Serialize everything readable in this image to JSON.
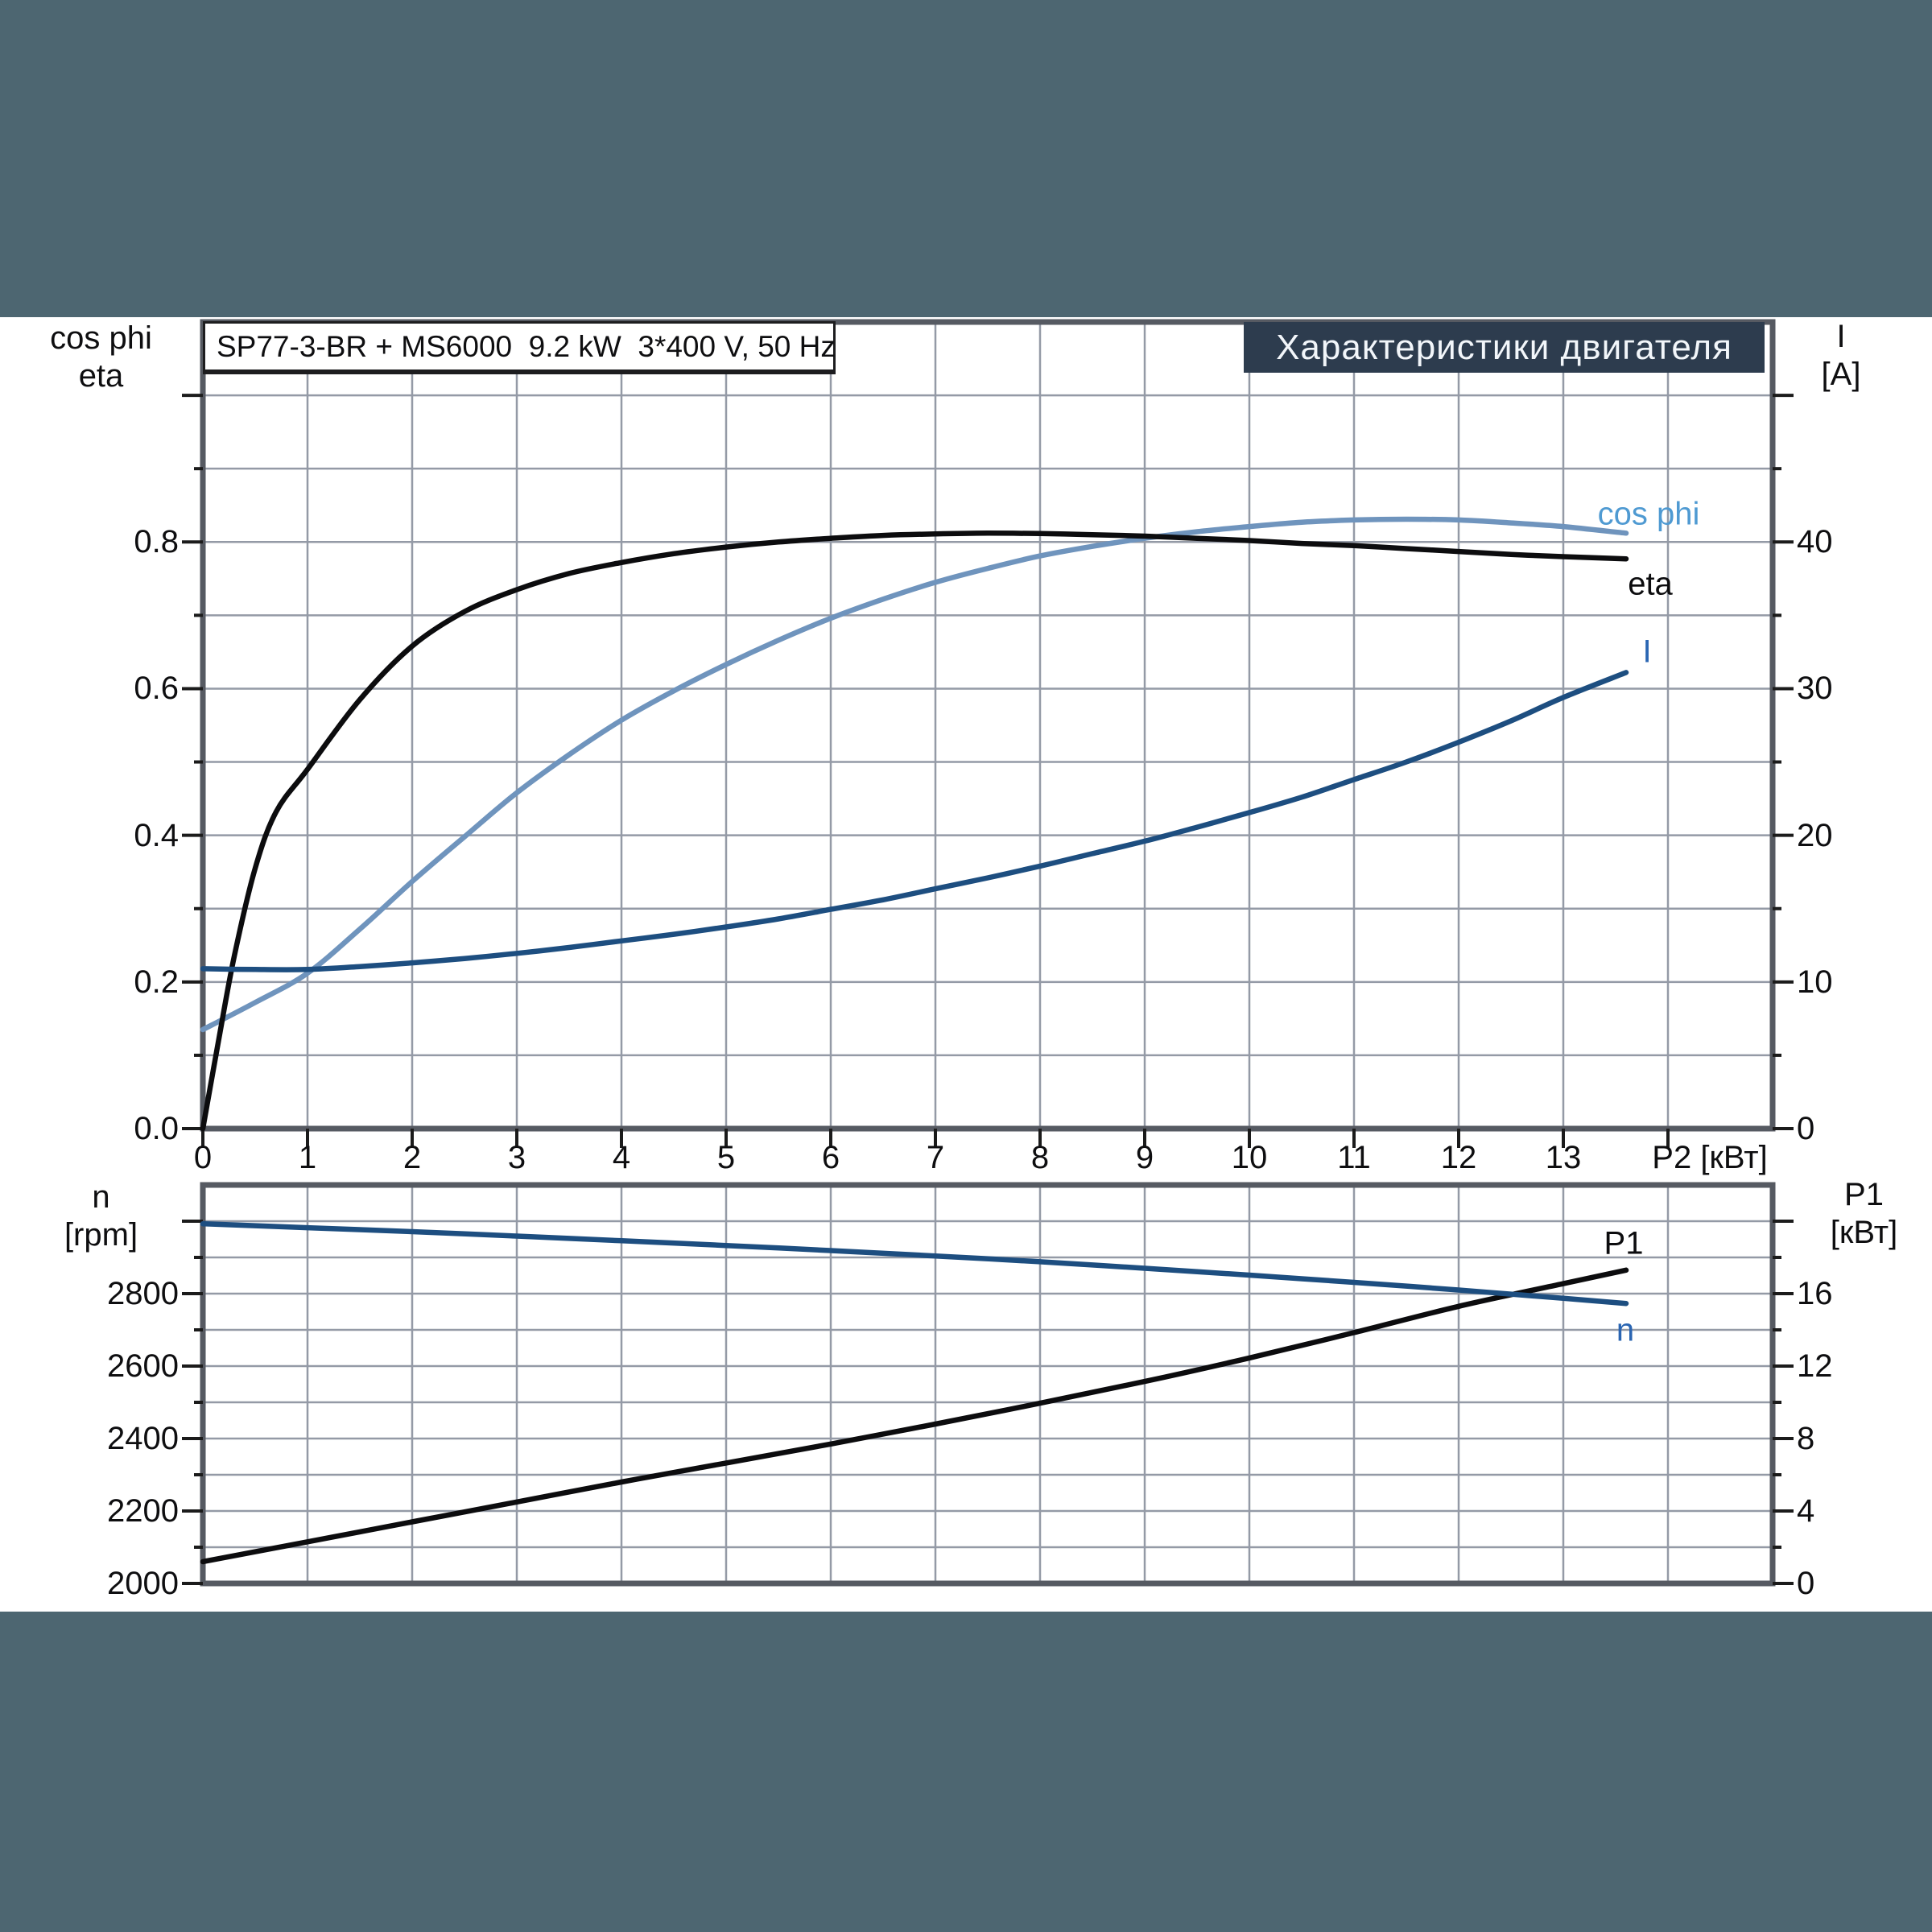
{
  "page": {
    "background": "#4d6671",
    "panel_bg": "#ffffff"
  },
  "title_box": {
    "text": "SP77-3-BR + MS6000  9.2 kW  3*400 V, 50 Hz"
  },
  "banner": {
    "text": "Характеристики двигателя",
    "bg": "#2d3c4e",
    "text_color": "#f2f6fa"
  },
  "axes_headers": {
    "top_left": [
      "cos phi",
      "eta"
    ],
    "top_right": [
      "I",
      "[A]"
    ],
    "bottom_left": [
      "n",
      "[rpm]"
    ],
    "bottom_right": [
      "P1",
      "[кВт]"
    ]
  },
  "chart_data": [
    {
      "id": "motor-electrical",
      "type": "line",
      "title": "Характеристики двигателя",
      "grid": true,
      "x": {
        "label": "P2 [кВт]",
        "min": 0,
        "max": 15,
        "grid_step": 1,
        "major_ticks": [
          0,
          1,
          2,
          3,
          4,
          5,
          6,
          7,
          8,
          9,
          10,
          11,
          12,
          13,
          14
        ],
        "tick_labels": [
          "0",
          "1",
          "2",
          "3",
          "4",
          "5",
          "6",
          "7",
          "8",
          "9",
          "10",
          "11",
          "12",
          "13"
        ]
      },
      "y_left": {
        "min": 0,
        "max": 1.1,
        "minor_step": 0.1,
        "labeled_ticks": [
          0,
          0.2,
          0.4,
          0.6,
          0.8
        ],
        "tick_labels": [
          "0.0",
          "0.2",
          "0.4",
          "0.6",
          "0.8"
        ],
        "extra_ticks": [
          1.0
        ]
      },
      "y_right": {
        "min": 0,
        "max": 55,
        "minor_step": 5,
        "labeled_ticks": [
          0,
          10,
          20,
          30,
          40
        ],
        "tick_labels": [
          "0",
          "10",
          "20",
          "30",
          "40"
        ],
        "extra_ticks": [
          50
        ]
      },
      "series": [
        {
          "id": "cosphi",
          "name": "cos phi",
          "axis": "left",
          "color": "#6f94bd",
          "label_color": "#4f9ad2",
          "points": [
            [
              0,
              0.135
            ],
            [
              0.5,
              0.172
            ],
            [
              1,
              0.212
            ],
            [
              1.5,
              0.272
            ],
            [
              2,
              0.337
            ],
            [
              2.5,
              0.398
            ],
            [
              3,
              0.458
            ],
            [
              3.5,
              0.51
            ],
            [
              4,
              0.557
            ],
            [
              4.5,
              0.597
            ],
            [
              5,
              0.633
            ],
            [
              5.5,
              0.666
            ],
            [
              6,
              0.696
            ],
            [
              6.5,
              0.722
            ],
            [
              7,
              0.745
            ],
            [
              7.5,
              0.764
            ],
            [
              8,
              0.781
            ],
            [
              8.5,
              0.794
            ],
            [
              9,
              0.805
            ],
            [
              9.5,
              0.814
            ],
            [
              10,
              0.821
            ],
            [
              10.5,
              0.827
            ],
            [
              11,
              0.83
            ],
            [
              11.5,
              0.831
            ],
            [
              12,
              0.83
            ],
            [
              12.5,
              0.826
            ],
            [
              13,
              0.821
            ],
            [
              13.6,
              0.812
            ]
          ]
        },
        {
          "id": "eta",
          "name": "eta",
          "axis": "left",
          "color": "#0c0c0e",
          "label_color": "#0c0c0e",
          "points": [
            [
              0,
              0
            ],
            [
              0.15,
              0.12
            ],
            [
              0.3,
              0.235
            ],
            [
              0.5,
              0.355
            ],
            [
              0.7,
              0.432
            ],
            [
              1,
              0.49
            ],
            [
              1.5,
              0.585
            ],
            [
              2,
              0.658
            ],
            [
              2.5,
              0.705
            ],
            [
              3,
              0.735
            ],
            [
              3.5,
              0.757
            ],
            [
              4,
              0.772
            ],
            [
              4.5,
              0.784
            ],
            [
              5,
              0.793
            ],
            [
              5.5,
              0.8
            ],
            [
              6,
              0.805
            ],
            [
              6.5,
              0.809
            ],
            [
              7,
              0.811
            ],
            [
              7.5,
              0.812
            ],
            [
              8,
              0.8115
            ],
            [
              8.5,
              0.81
            ],
            [
              9,
              0.808
            ],
            [
              9.5,
              0.805
            ],
            [
              10,
              0.802
            ],
            [
              10.5,
              0.798
            ],
            [
              11,
              0.795
            ],
            [
              11.5,
              0.791
            ],
            [
              12,
              0.787
            ],
            [
              12.5,
              0.783
            ],
            [
              13,
              0.78
            ],
            [
              13.6,
              0.777
            ]
          ]
        },
        {
          "id": "current",
          "name": "I",
          "axis": "right",
          "color": "#1d4e80",
          "label_color": "#2a65b2",
          "points": [
            [
              0,
              10.9
            ],
            [
              0.5,
              10.85
            ],
            [
              1,
              10.85
            ],
            [
              1.5,
              11.05
            ],
            [
              2,
              11.3
            ],
            [
              2.5,
              11.6
            ],
            [
              3,
              11.95
            ],
            [
              3.5,
              12.35
            ],
            [
              4,
              12.8
            ],
            [
              4.5,
              13.25
            ],
            [
              5,
              13.75
            ],
            [
              5.5,
              14.3
            ],
            [
              6,
              14.95
            ],
            [
              6.5,
              15.6
            ],
            [
              7,
              16.35
            ],
            [
              7.5,
              17.1
            ],
            [
              8,
              17.9
            ],
            [
              8.5,
              18.75
            ],
            [
              9,
              19.6
            ],
            [
              9.5,
              20.55
            ],
            [
              10,
              21.55
            ],
            [
              10.5,
              22.6
            ],
            [
              11,
              23.8
            ],
            [
              11.5,
              25.0
            ],
            [
              12,
              26.35
            ],
            [
              12.5,
              27.8
            ],
            [
              13,
              29.4
            ],
            [
              13.6,
              31.1
            ]
          ]
        }
      ]
    },
    {
      "id": "motor-speed-power",
      "type": "line",
      "grid": true,
      "x": {
        "label": "",
        "min": 0,
        "max": 15,
        "grid_step": 1,
        "major_ticks": [],
        "tick_labels": []
      },
      "y_left": {
        "min": 2000,
        "max": 3100,
        "minor_step": 100,
        "labeled_ticks": [
          2000,
          2200,
          2400,
          2600,
          2800
        ],
        "tick_labels": [
          "2000",
          "2200",
          "2400",
          "2600",
          "2800"
        ],
        "extra_ticks": [
          3000
        ]
      },
      "y_right": {
        "min": 0,
        "max": 22,
        "minor_step": 2,
        "labeled_ticks": [
          0,
          4,
          8,
          12,
          16
        ],
        "tick_labels": [
          "0",
          "4",
          "8",
          "12",
          "16"
        ],
        "extra_ticks": [
          20
        ]
      },
      "series": [
        {
          "id": "p1",
          "name": "P1",
          "axis": "right",
          "color": "#0c0c0e",
          "label_color": "#0c0c0e",
          "points": [
            [
              0,
              1.2
            ],
            [
              1,
              2.3
            ],
            [
              2,
              3.4
            ],
            [
              3,
              4.5
            ],
            [
              4,
              5.6
            ],
            [
              5,
              6.65
            ],
            [
              6,
              7.7
            ],
            [
              7,
              8.8
            ],
            [
              8,
              9.95
            ],
            [
              9,
              11.15
            ],
            [
              10,
              12.45
            ],
            [
              11,
              13.85
            ],
            [
              12,
              15.3
            ],
            [
              13,
              16.55
            ],
            [
              13.6,
              17.3
            ]
          ]
        },
        {
          "id": "speed",
          "name": "n",
          "axis": "left",
          "color": "#1d4e80",
          "label_color": "#2a65b2",
          "points": [
            [
              0,
              2993
            ],
            [
              1,
              2982
            ],
            [
              2,
              2971
            ],
            [
              3,
              2959
            ],
            [
              4,
              2946
            ],
            [
              5,
              2933
            ],
            [
              6,
              2919
            ],
            [
              7,
              2904
            ],
            [
              8,
              2888
            ],
            [
              9,
              2870
            ],
            [
              10,
              2851
            ],
            [
              11,
              2831
            ],
            [
              12,
              2810
            ],
            [
              13,
              2787
            ],
            [
              13.6,
              2773
            ]
          ]
        }
      ]
    }
  ]
}
